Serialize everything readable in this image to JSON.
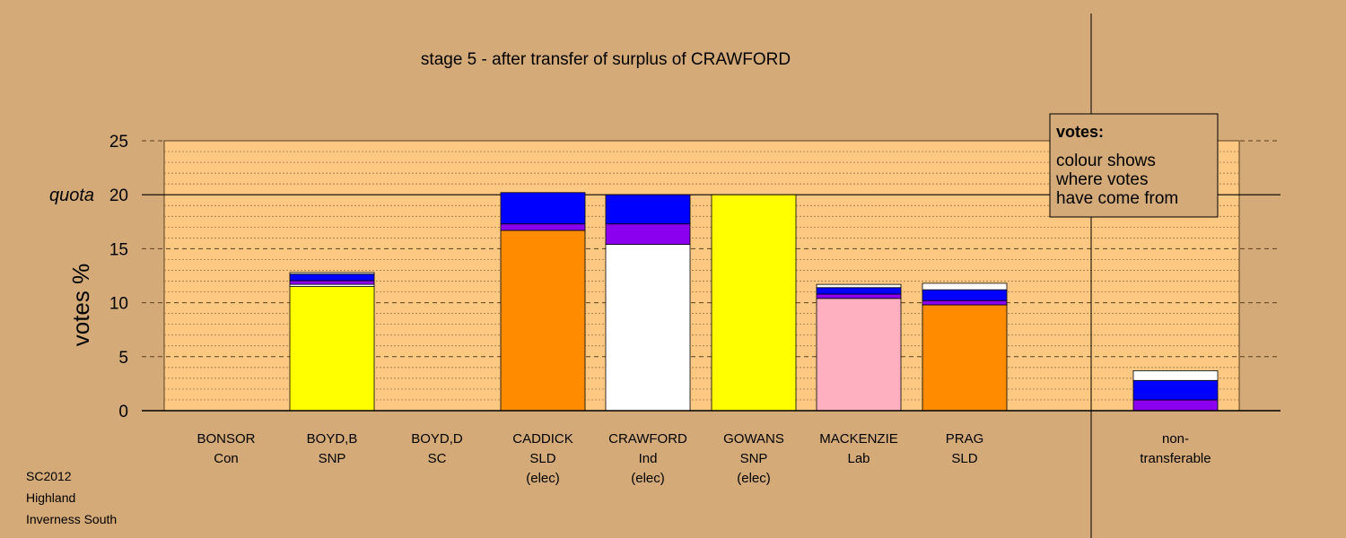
{
  "chart_data": {
    "type": "bar",
    "stacked": true,
    "title": "stage 5 - after transfer of surplus of CRAWFORD",
    "ylabel": "votes %",
    "ylim": [
      0,
      25
    ],
    "yticks": [
      0,
      5,
      10,
      15,
      20,
      25
    ],
    "quota": {
      "label": "quota",
      "value": 20
    },
    "grid": true,
    "colors": {
      "yellow": "#ffff00",
      "blue": "#0000ff",
      "purple": "#8b00ee",
      "white": "#ffffff",
      "orange": "#ff8c00",
      "pink": "#ffb0c0"
    },
    "categories": [
      {
        "name": "BONSOR",
        "party": "Con",
        "status": "",
        "segments": []
      },
      {
        "name": "BOYD,B",
        "party": "SNP",
        "status": "",
        "segments": [
          {
            "color": "yellow",
            "value": 11.5
          },
          {
            "color": "white",
            "value": 0.2
          },
          {
            "color": "purple",
            "value": 0.35
          },
          {
            "color": "blue",
            "value": 0.6
          },
          {
            "color": "white",
            "value": 0.15
          }
        ]
      },
      {
        "name": "BOYD,D",
        "party": "SC",
        "status": "",
        "segments": []
      },
      {
        "name": "CADDICK",
        "party": "SLD",
        "status": "(elec)",
        "segments": [
          {
            "color": "orange",
            "value": 16.7
          },
          {
            "color": "purple",
            "value": 0.6
          },
          {
            "color": "blue",
            "value": 2.9
          }
        ]
      },
      {
        "name": "CRAWFORD",
        "party": "Ind",
        "status": "(elec)",
        "segments": [
          {
            "color": "white",
            "value": 15.4
          },
          {
            "color": "purple",
            "value": 1.9
          },
          {
            "color": "blue",
            "value": 2.7
          }
        ]
      },
      {
        "name": "GOWANS",
        "party": "SNP",
        "status": "(elec)",
        "segments": [
          {
            "color": "yellow",
            "value": 20.0
          }
        ]
      },
      {
        "name": "MACKENZIE",
        "party": "Lab",
        "status": "",
        "segments": [
          {
            "color": "pink",
            "value": 10.4
          },
          {
            "color": "purple",
            "value": 0.4
          },
          {
            "color": "blue",
            "value": 0.6
          },
          {
            "color": "white",
            "value": 0.3
          }
        ]
      },
      {
        "name": "PRAG",
        "party": "SLD",
        "status": "",
        "segments": [
          {
            "color": "orange",
            "value": 9.8
          },
          {
            "color": "purple",
            "value": 0.4
          },
          {
            "color": "blue",
            "value": 1.0
          },
          {
            "color": "white",
            "value": 0.6
          }
        ]
      }
    ],
    "nontransferable": {
      "label_line1": "non-",
      "label_line2": "transferable",
      "segments": [
        {
          "color": "purple",
          "value": 1.0
        },
        {
          "color": "blue",
          "value": 1.8
        },
        {
          "color": "white",
          "value": 0.9
        }
      ]
    },
    "legend": {
      "title": "votes:",
      "lines": [
        "colour shows",
        "where votes",
        "have come from"
      ]
    }
  },
  "footer": [
    "SC2012",
    "Highland",
    "Inverness South"
  ]
}
